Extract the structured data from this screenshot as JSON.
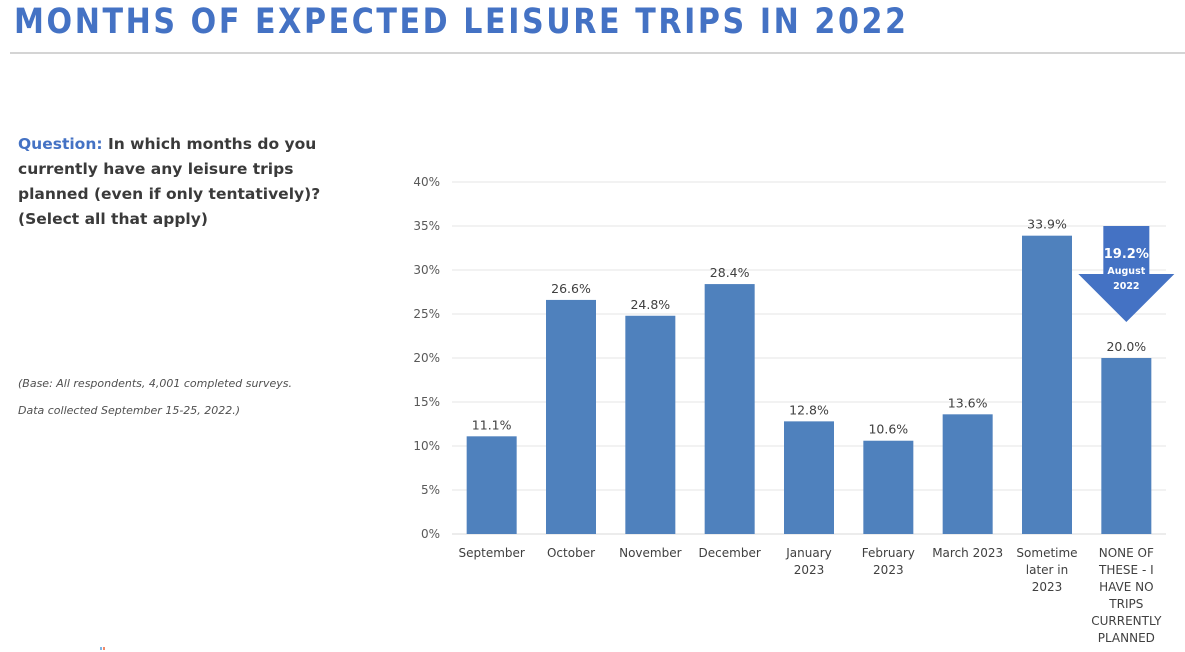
{
  "header": {
    "title": "MONTHS OF EXPECTED LEISURE TRIPS IN 2022"
  },
  "question": {
    "label": "Question:",
    "text": " In which months do you currently have any leisure trips planned (even if only tentatively)? (Select all that apply)"
  },
  "base_note": {
    "line1": "(Base: All respondents, 4,001 completed surveys.",
    "line2": "Data collected September 15-25, 2022.)"
  },
  "colors": {
    "title": "#4472c4",
    "bar": "#4f81bd",
    "callout": "#4472c4",
    "grid": "#e6e6e6"
  },
  "chart_data": {
    "type": "bar",
    "title": "MONTHS OF EXPECTED LEISURE TRIPS IN 2022",
    "xlabel": "",
    "ylabel": "",
    "ylim": [
      0,
      40
    ],
    "yticks": [
      0,
      5,
      10,
      15,
      20,
      25,
      30,
      35,
      40
    ],
    "ytick_labels": [
      "0%",
      "5%",
      "10%",
      "15%",
      "20%",
      "25%",
      "30%",
      "35%",
      "40%"
    ],
    "grid": true,
    "legend": "none",
    "categories": [
      [
        "September"
      ],
      [
        "October"
      ],
      [
        "November"
      ],
      [
        "December"
      ],
      [
        "January",
        "2023"
      ],
      [
        "February",
        "2023"
      ],
      [
        "March 2023"
      ],
      [
        "Sometime",
        "later in",
        "2023"
      ],
      [
        "NONE OF",
        "THESE - I",
        "HAVE NO",
        "TRIPS",
        "CURRENTLY",
        "PLANNED"
      ]
    ],
    "values": [
      11.1,
      26.6,
      24.8,
      28.4,
      12.8,
      10.6,
      13.6,
      33.9,
      20.0
    ],
    "data_labels": [
      "11.1%",
      "26.6%",
      "24.8%",
      "28.4%",
      "12.8%",
      "10.6%",
      "13.6%",
      "33.9%",
      "20.0%"
    ],
    "annotations": [
      {
        "type": "down-arrow-callout",
        "category_index": 8,
        "value_text": "19.2%",
        "line1": "August",
        "line2": "2022"
      }
    ]
  }
}
